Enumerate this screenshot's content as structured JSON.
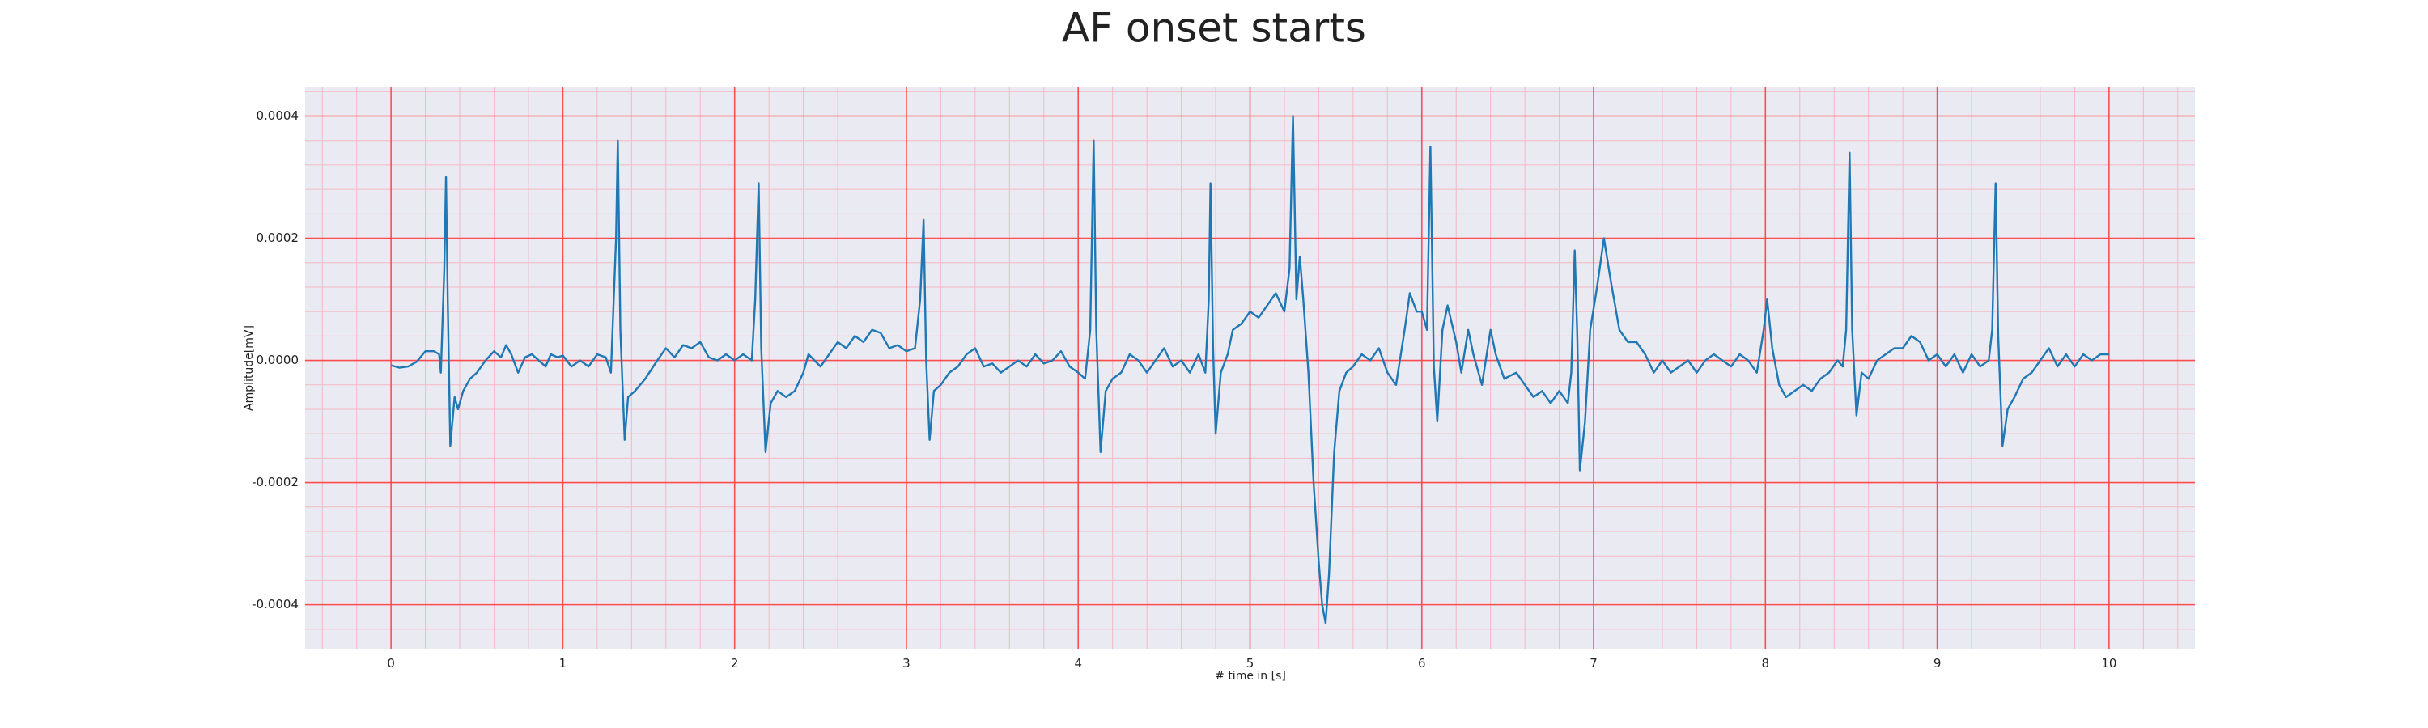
{
  "chart_data": {
    "type": "line",
    "title": "AF onset starts",
    "xlabel": "# time in [s]",
    "ylabel": "Amplitude[mV]",
    "color": "#1f77b4",
    "background": "#eaeaf2",
    "grid": true,
    "grid_color": "#ff4d4d",
    "minor_grid_color": "#f5b8c4",
    "xlim": [
      -0.5,
      10.5
    ],
    "ylim": [
      -0.000472,
      0.000447
    ],
    "xticks": [
      0,
      1,
      2,
      3,
      4,
      5,
      6,
      7,
      8,
      9,
      10
    ],
    "yticks": [
      -0.0004,
      -0.0002,
      {
        "value": 0,
        "label": "0.0000"
      },
      0.0002,
      0.0004
    ],
    "xticks_minor": [
      -0.4,
      -0.2,
      0.2,
      0.4,
      0.6,
      0.8,
      1.2,
      1.4,
      1.6,
      1.8,
      2.2,
      2.4,
      2.6,
      2.8,
      3.2,
      3.4,
      3.6,
      3.8,
      4.2,
      4.4,
      4.6,
      4.8,
      5.2,
      5.4,
      5.6,
      5.8,
      6.2,
      6.4,
      6.6,
      6.8,
      7.2,
      7.4,
      7.6,
      7.8,
      8.2,
      8.4,
      8.6,
      8.8,
      9.2,
      9.4,
      9.6,
      9.8,
      10.2,
      10.4
    ],
    "yticks_minor": [
      -0.00044,
      -0.00036,
      -0.00032,
      -0.00028,
      -0.00024,
      -0.00016,
      -0.00012,
      -8e-05,
      -4e-05,
      4e-05,
      8e-05,
      0.00012,
      0.00016,
      0.00024,
      0.00028,
      0.00032,
      0.00036,
      0.00044
    ],
    "x": [
      0.0,
      0.05,
      0.1,
      0.15,
      0.2,
      0.25,
      0.28,
      0.29,
      0.31,
      0.32,
      0.33,
      0.345,
      0.37,
      0.39,
      0.42,
      0.46,
      0.5,
      0.55,
      0.6,
      0.64,
      0.67,
      0.7,
      0.74,
      0.78,
      0.82,
      0.86,
      0.9,
      0.93,
      0.97,
      1.0,
      1.05,
      1.1,
      1.15,
      1.2,
      1.25,
      1.28,
      1.31,
      1.32,
      1.335,
      1.36,
      1.38,
      1.42,
      1.48,
      1.55,
      1.6,
      1.65,
      1.7,
      1.75,
      1.8,
      1.85,
      1.9,
      1.95,
      2.0,
      2.05,
      2.1,
      2.12,
      2.14,
      2.155,
      2.18,
      2.21,
      2.25,
      2.3,
      2.35,
      2.4,
      2.43,
      2.5,
      2.55,
      2.6,
      2.65,
      2.7,
      2.75,
      2.8,
      2.85,
      2.9,
      2.95,
      3.0,
      3.05,
      3.08,
      3.1,
      3.115,
      3.135,
      3.16,
      3.2,
      3.25,
      3.3,
      3.35,
      3.4,
      3.45,
      3.5,
      3.55,
      3.6,
      3.65,
      3.7,
      3.75,
      3.8,
      3.85,
      3.9,
      3.95,
      4.0,
      4.04,
      4.07,
      4.09,
      4.105,
      4.13,
      4.16,
      4.2,
      4.25,
      4.3,
      4.35,
      4.4,
      4.45,
      4.5,
      4.55,
      4.6,
      4.65,
      4.7,
      4.74,
      4.76,
      4.77,
      4.785,
      4.8,
      4.83,
      4.87,
      4.9,
      4.95,
      5.0,
      5.05,
      5.1,
      5.15,
      5.2,
      5.23,
      5.25,
      5.27,
      5.29,
      5.31,
      5.34,
      5.37,
      5.4,
      5.42,
      5.44,
      5.46,
      5.49,
      5.52,
      5.56,
      5.6,
      5.65,
      5.7,
      5.75,
      5.8,
      5.85,
      5.9,
      5.93,
      5.97,
      6.0,
      6.03,
      6.05,
      6.07,
      6.09,
      6.12,
      6.15,
      6.2,
      6.23,
      6.27,
      6.3,
      6.35,
      6.4,
      6.43,
      6.48,
      6.55,
      6.6,
      6.65,
      6.7,
      6.75,
      6.8,
      6.85,
      6.87,
      6.89,
      6.905,
      6.92,
      6.95,
      6.98,
      7.02,
      7.06,
      7.1,
      7.15,
      7.2,
      7.25,
      7.3,
      7.35,
      7.4,
      7.45,
      7.5,
      7.55,
      7.6,
      7.65,
      7.7,
      7.75,
      7.8,
      7.85,
      7.9,
      7.95,
      7.99,
      8.01,
      8.04,
      8.08,
      8.12,
      8.17,
      8.22,
      8.27,
      8.32,
      8.37,
      8.42,
      8.45,
      8.47,
      8.49,
      8.505,
      8.53,
      8.56,
      8.6,
      8.65,
      8.7,
      8.75,
      8.8,
      8.85,
      8.9,
      8.95,
      9.0,
      9.05,
      9.1,
      9.15,
      9.2,
      9.25,
      9.3,
      9.32,
      9.34,
      9.355,
      9.38,
      9.41,
      9.45,
      9.5,
      9.55,
      9.6,
      9.65,
      9.7,
      9.75,
      9.8,
      9.85,
      9.9,
      9.95,
      10.0
    ],
    "values": [
      -8e-06,
      -1.2e-05,
      -1e-05,
      -2e-06,
      1.5e-05,
      1.5e-05,
      1e-05,
      -2e-05,
      0.00015,
      0.0003,
      0.0001,
      -0.00014,
      -6e-05,
      -8e-05,
      -5e-05,
      -3e-05,
      -2e-05,
      0.0,
      1.5e-05,
      5e-06,
      2.5e-05,
      1e-05,
      -2e-05,
      5e-06,
      1e-05,
      0.0,
      -1e-05,
      1e-05,
      5e-06,
      8e-06,
      -1e-05,
      0.0,
      -1e-05,
      1e-05,
      5e-06,
      -2e-05,
      0.0002,
      0.00036,
      5e-05,
      -0.00013,
      -6e-05,
      -5e-05,
      -3e-05,
      0.0,
      2e-05,
      5e-06,
      2.5e-05,
      2e-05,
      3e-05,
      5e-06,
      0.0,
      1e-05,
      0.0,
      1e-05,
      0.0,
      0.0001,
      0.00029,
      2e-05,
      -0.00015,
      -7e-05,
      -5e-05,
      -6e-05,
      -5e-05,
      -2e-05,
      1e-05,
      -1e-05,
      1e-05,
      3e-05,
      2e-05,
      4e-05,
      3e-05,
      5e-05,
      4.5e-05,
      2e-05,
      2.5e-05,
      1.5e-05,
      2e-05,
      0.0001,
      0.00023,
      0.0,
      -0.00013,
      -5e-05,
      -4e-05,
      -2e-05,
      -1e-05,
      1e-05,
      2e-05,
      -1e-05,
      -5e-06,
      -2e-05,
      -1e-05,
      0.0,
      -1e-05,
      1e-05,
      -5e-06,
      0.0,
      1.5e-05,
      -1e-05,
      -2e-05,
      -3e-05,
      5e-05,
      0.00036,
      5e-05,
      -0.00015,
      -5e-05,
      -3e-05,
      -2e-05,
      1e-05,
      0.0,
      -2e-05,
      0.0,
      2e-05,
      -1e-05,
      0.0,
      -2e-05,
      1e-05,
      -2e-05,
      0.0001,
      0.00029,
      2e-05,
      -0.00012,
      -2e-05,
      1e-05,
      5e-05,
      6e-05,
      8e-05,
      7e-05,
      9e-05,
      0.00011,
      8e-05,
      0.00015,
      0.0004,
      0.0001,
      0.00017,
      0.0001,
      -2e-05,
      -0.0002,
      -0.00033,
      -0.0004,
      -0.00043,
      -0.00035,
      -0.00015,
      -5e-05,
      -2e-05,
      -1e-05,
      1e-05,
      0.0,
      2e-05,
      -2e-05,
      -4e-05,
      5e-05,
      0.00011,
      8e-05,
      8e-05,
      5e-05,
      0.00035,
      -1e-05,
      -0.0001,
      5e-05,
      9e-05,
      3e-05,
      -2e-05,
      5e-05,
      1e-05,
      -4e-05,
      5e-05,
      1e-05,
      -3e-05,
      -2e-05,
      -4e-05,
      -6e-05,
      -5e-05,
      -7e-05,
      -5e-05,
      -7e-05,
      -2e-05,
      0.00018,
      4e-05,
      -0.00018,
      -0.0001,
      5e-05,
      0.00012,
      0.0002,
      0.00013,
      5e-05,
      3e-05,
      3e-05,
      1e-05,
      -2e-05,
      0.0,
      -2e-05,
      -1e-05,
      0.0,
      -2e-05,
      0.0,
      1e-05,
      0.0,
      -1e-05,
      1e-05,
      0.0,
      -2e-05,
      5e-05,
      0.0001,
      2e-05,
      -4e-05,
      -6e-05,
      -5e-05,
      -4e-05,
      -5e-05,
      -3e-05,
      -2e-05,
      0.0,
      -1e-05,
      5e-05,
      0.00034,
      5e-05,
      -9e-05,
      -2e-05,
      -3e-05,
      0.0,
      1e-05,
      2e-05,
      2e-05,
      4e-05,
      3e-05,
      0.0,
      1e-05,
      -1e-05,
      1e-05,
      -2e-05,
      1e-05,
      -1e-05,
      0.0,
      5e-05,
      0.00029,
      4e-05,
      -0.00014,
      -8e-05,
      -6e-05,
      -3e-05,
      -2e-05,
      0.0,
      2e-05,
      -1e-05,
      1e-05,
      -1e-05,
      1e-05,
      0.0,
      1e-05,
      1e-05
    ]
  }
}
